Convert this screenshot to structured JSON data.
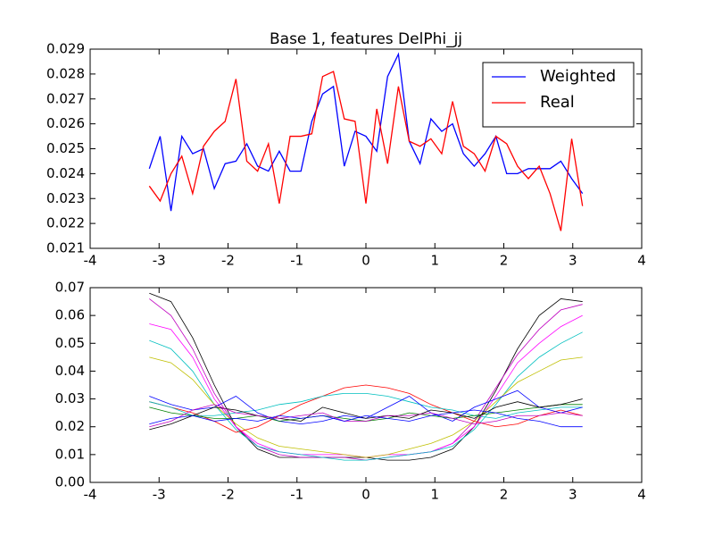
{
  "chart_data": [
    {
      "type": "line",
      "title": "Base 1, features DelPhi_jj",
      "x": [
        -3.1416,
        -2.9845,
        -2.8274,
        -2.6704,
        -2.5133,
        -2.3562,
        -2.1991,
        -2.042,
        -1.885,
        -1.7279,
        -1.5708,
        -1.4137,
        -1.2566,
        -1.0996,
        -0.9425,
        -0.7854,
        -0.6283,
        -0.4712,
        -0.3142,
        -0.1571,
        0,
        0.1571,
        0.3142,
        0.4712,
        0.6283,
        0.7854,
        0.9425,
        1.0996,
        1.2566,
        1.4137,
        1.5708,
        1.7279,
        1.885,
        2.042,
        2.1991,
        2.3562,
        2.5133,
        2.6704,
        2.8274,
        2.9845,
        3.1416
      ],
      "series": [
        {
          "name": "Weighted",
          "color": "#0000ff",
          "values": [
            0.0242,
            0.0255,
            0.0225,
            0.0255,
            0.0248,
            0.025,
            0.0234,
            0.0244,
            0.0245,
            0.0252,
            0.0243,
            0.0241,
            0.0249,
            0.0241,
            0.0241,
            0.0261,
            0.0272,
            0.0275,
            0.0243,
            0.0257,
            0.0255,
            0.0249,
            0.0279,
            0.0288,
            0.0253,
            0.0244,
            0.0262,
            0.0257,
            0.026,
            0.0248,
            0.0243,
            0.0248,
            0.0255,
            0.024,
            0.024,
            0.0242,
            0.0242,
            0.0242,
            0.0245,
            0.0238,
            0.0232
          ]
        },
        {
          "name": "Real",
          "color": "#ff0000",
          "values": [
            0.0235,
            0.0229,
            0.024,
            0.0247,
            0.0232,
            0.0251,
            0.0257,
            0.0261,
            0.0278,
            0.0245,
            0.0241,
            0.0252,
            0.0228,
            0.0255,
            0.0255,
            0.0256,
            0.0279,
            0.0281,
            0.0262,
            0.0261,
            0.0228,
            0.0266,
            0.0244,
            0.0275,
            0.0253,
            0.0251,
            0.0254,
            0.0248,
            0.0269,
            0.0251,
            0.0248,
            0.0241,
            0.0255,
            0.0252,
            0.0243,
            0.0238,
            0.0243,
            0.0232,
            0.0217,
            0.0254,
            0.0227
          ]
        }
      ],
      "xlim": [
        -4,
        4
      ],
      "xticks": [
        -4,
        -3,
        -2,
        -1,
        0,
        1,
        2,
        3,
        4
      ],
      "ylim": [
        0.021,
        0.029
      ],
      "yticks": [
        0.021,
        0.022,
        0.023,
        0.024,
        0.025,
        0.026,
        0.027,
        0.028,
        0.029
      ],
      "legend": "upper right"
    },
    {
      "type": "line",
      "x": [
        -3.1416,
        -2.8274,
        -2.5133,
        -2.1991,
        -1.885,
        -1.5708,
        -1.2566,
        -0.9425,
        -0.6283,
        -0.3142,
        0,
        0.3142,
        0.6283,
        0.9425,
        1.2566,
        1.5708,
        1.885,
        2.1991,
        2.5133,
        2.8274,
        3.1416
      ],
      "series": [
        {
          "color": "#000000",
          "values": [
            0.068,
            0.065,
            0.052,
            0.035,
            0.02,
            0.012,
            0.009,
            0.009,
            0.009,
            0.009,
            0.009,
            0.008,
            0.008,
            0.009,
            0.012,
            0.02,
            0.033,
            0.048,
            0.06,
            0.066,
            0.065
          ]
        },
        {
          "color": "#bf00bf",
          "values": [
            0.066,
            0.06,
            0.048,
            0.032,
            0.02,
            0.013,
            0.01,
            0.009,
            0.009,
            0.009,
            0.008,
            0.009,
            0.01,
            0.011,
            0.014,
            0.022,
            0.034,
            0.046,
            0.055,
            0.062,
            0.064
          ]
        },
        {
          "color": "#ff00ff",
          "values": [
            0.057,
            0.055,
            0.045,
            0.03,
            0.02,
            0.014,
            0.011,
            0.01,
            0.01,
            0.01,
            0.009,
            0.01,
            0.01,
            0.011,
            0.014,
            0.02,
            0.031,
            0.043,
            0.05,
            0.056,
            0.06
          ]
        },
        {
          "color": "#00bfbf",
          "values": [
            0.051,
            0.048,
            0.04,
            0.028,
            0.019,
            0.013,
            0.011,
            0.01,
            0.009,
            0.008,
            0.008,
            0.009,
            0.01,
            0.011,
            0.013,
            0.019,
            0.028,
            0.038,
            0.045,
            0.05,
            0.054
          ]
        },
        {
          "color": "#bfbf00",
          "values": [
            0.045,
            0.043,
            0.037,
            0.028,
            0.021,
            0.016,
            0.013,
            0.012,
            0.011,
            0.01,
            0.009,
            0.01,
            0.012,
            0.014,
            0.017,
            0.022,
            0.029,
            0.036,
            0.04,
            0.044,
            0.045
          ]
        },
        {
          "color": "#ff0000",
          "values": [
            0.029,
            0.027,
            0.025,
            0.022,
            0.018,
            0.02,
            0.024,
            0.028,
            0.031,
            0.034,
            0.035,
            0.034,
            0.032,
            0.028,
            0.025,
            0.022,
            0.02,
            0.021,
            0.024,
            0.026,
            0.024
          ]
        },
        {
          "color": "#00bfbf",
          "values": [
            0.029,
            0.027,
            0.024,
            0.024,
            0.025,
            0.026,
            0.028,
            0.029,
            0.031,
            0.032,
            0.032,
            0.031,
            0.029,
            0.027,
            0.026,
            0.024,
            0.023,
            0.025,
            0.026,
            0.027,
            0.027
          ]
        },
        {
          "color": "#0000ff",
          "values": [
            0.031,
            0.028,
            0.026,
            0.027,
            0.031,
            0.025,
            0.022,
            0.021,
            0.022,
            0.024,
            0.023,
            0.027,
            0.031,
            0.025,
            0.022,
            0.027,
            0.03,
            0.033,
            0.027,
            0.025,
            0.027
          ]
        },
        {
          "color": "#008000",
          "values": [
            0.027,
            0.025,
            0.024,
            0.023,
            0.023,
            0.024,
            0.022,
            0.023,
            0.024,
            0.023,
            0.022,
            0.023,
            0.025,
            0.024,
            0.023,
            0.024,
            0.025,
            0.026,
            0.027,
            0.028,
            0.028
          ]
        },
        {
          "color": "#000000",
          "values": [
            0.019,
            0.021,
            0.024,
            0.027,
            0.026,
            0.024,
            0.023,
            0.022,
            0.027,
            0.025,
            0.023,
            0.024,
            0.023,
            0.026,
            0.025,
            0.023,
            0.027,
            0.029,
            0.027,
            0.028,
            0.03
          ]
        },
        {
          "color": "#bf00bf",
          "values": [
            0.02,
            0.022,
            0.026,
            0.028,
            0.025,
            0.024,
            0.023,
            0.024,
            0.025,
            0.022,
            0.022,
            0.024,
            0.024,
            0.025,
            0.023,
            0.021,
            0.022,
            0.024,
            0.024,
            0.025,
            0.024
          ]
        },
        {
          "color": "#0000ff",
          "values": [
            0.021,
            0.023,
            0.024,
            0.022,
            0.023,
            0.022,
            0.024,
            0.023,
            0.024,
            0.022,
            0.024,
            0.023,
            0.022,
            0.024,
            0.025,
            0.026,
            0.025,
            0.023,
            0.022,
            0.02,
            0.02
          ]
        }
      ],
      "xlim": [
        -4,
        4
      ],
      "xticks": [
        -4,
        -3,
        -2,
        -1,
        0,
        1,
        2,
        3,
        4
      ],
      "ylim": [
        0,
        0.07
      ],
      "yticks": [
        {
          "value": 0,
          "label": "0.00"
        },
        0.01,
        0.02,
        0.03,
        0.04,
        0.05,
        0.06,
        0.07
      ]
    }
  ]
}
